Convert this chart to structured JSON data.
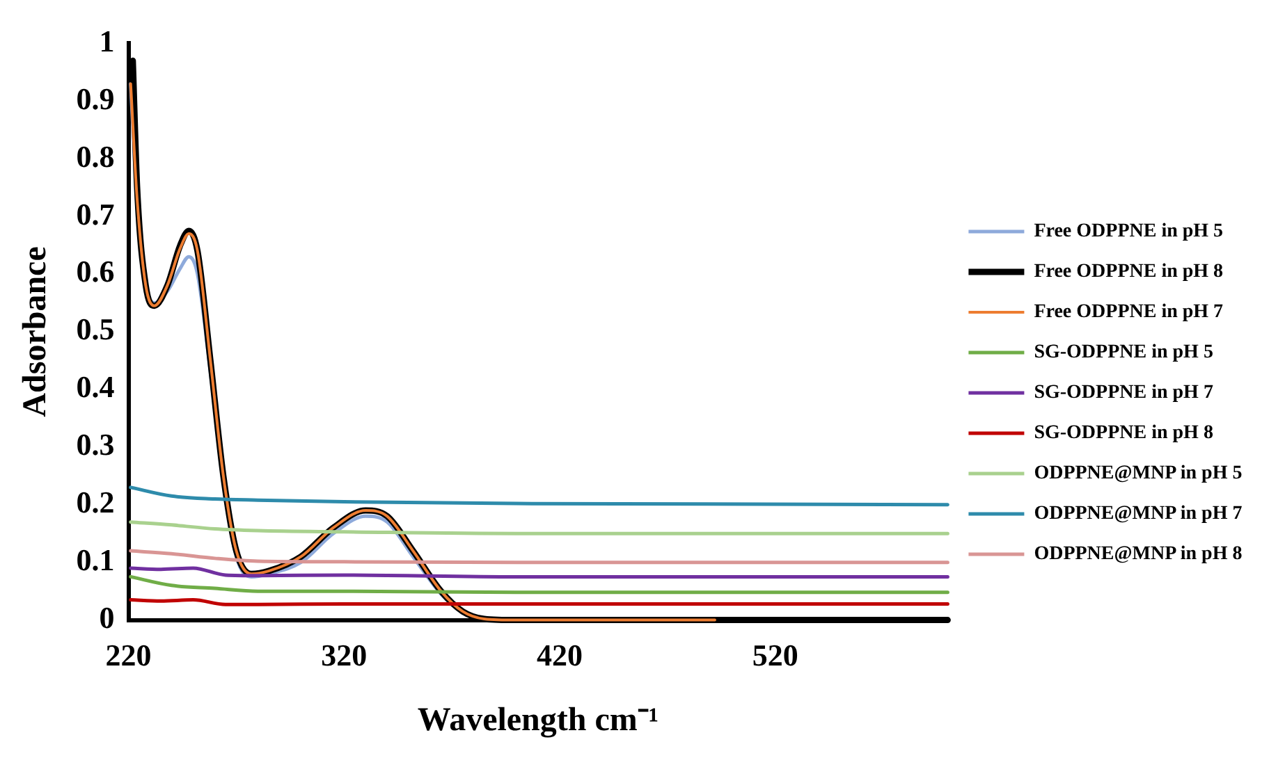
{
  "chart_data": {
    "type": "line",
    "xlabel": "Wavelength cm⁻¹",
    "ylabel": "Adsorbance",
    "xlim": [
      220,
      600
    ],
    "xticks": [
      220,
      320,
      420,
      520
    ],
    "ylim": [
      0,
      1
    ],
    "yticks": [
      0,
      0.1,
      0.2,
      0.3,
      0.4,
      0.5,
      0.6,
      0.7,
      0.8,
      0.9,
      1
    ],
    "grid": false,
    "legend": "right",
    "marker": "none",
    "line_style": "solid",
    "series": [
      {
        "name": "Free ODPPNE in pH 5",
        "color": "#8eaadb",
        "x": [
          221,
          224,
          228,
          232,
          238,
          244,
          248,
          252,
          258,
          264,
          270,
          277,
          285,
          300,
          315,
          330,
          340,
          352,
          365,
          375
        ],
        "values": [
          0.93,
          0.72,
          0.58,
          0.55,
          0.57,
          0.61,
          0.63,
          0.6,
          0.43,
          0.24,
          0.11,
          0.075,
          0.08,
          0.1,
          0.15,
          0.18,
          0.17,
          0.11,
          0.045,
          0.012
        ]
      },
      {
        "name": "Free ODPPNE in pH 8",
        "color": "#000000",
        "x": [
          222,
          224,
          228,
          232,
          238,
          244,
          248,
          252,
          258,
          264,
          270,
          277,
          285,
          300,
          315,
          330,
          340,
          352,
          365,
          375,
          385,
          400,
          600
        ],
        "values": [
          0.97,
          0.75,
          0.58,
          0.545,
          0.58,
          0.65,
          0.675,
          0.64,
          0.45,
          0.25,
          0.12,
          0.08,
          0.085,
          0.11,
          0.16,
          0.19,
          0.18,
          0.12,
          0.05,
          0.015,
          0.002,
          0,
          0
        ]
      },
      {
        "name": "Free ODPPNE in pH 7",
        "color": "#ed7d31",
        "x": [
          221,
          224,
          228,
          232,
          238,
          244,
          248,
          252,
          258,
          264,
          270,
          277,
          285,
          300,
          315,
          330,
          340,
          352,
          365,
          375,
          385,
          400,
          492
        ],
        "values": [
          0.93,
          0.73,
          0.58,
          0.545,
          0.58,
          0.645,
          0.67,
          0.64,
          0.45,
          0.25,
          0.12,
          0.08,
          0.085,
          0.11,
          0.16,
          0.19,
          0.18,
          0.12,
          0.05,
          0.015,
          0.002,
          0,
          0
        ]
      },
      {
        "name": "SG-ODPPNE in pH 5",
        "color": "#70ad47",
        "x": [
          221,
          240,
          260,
          280,
          320,
          400,
          600
        ],
        "values": [
          0.075,
          0.06,
          0.055,
          0.05,
          0.05,
          0.048,
          0.048
        ]
      },
      {
        "name": "SG-ODPPNE in pH 7",
        "color": "#7030a0",
        "x": [
          221,
          235,
          250,
          265,
          280,
          320,
          400,
          600
        ],
        "values": [
          0.09,
          0.088,
          0.09,
          0.078,
          0.077,
          0.078,
          0.075,
          0.075
        ]
      },
      {
        "name": "SG-ODPPNE in pH 8",
        "color": "#c00000",
        "x": [
          221,
          235,
          250,
          265,
          280,
          320,
          400,
          600
        ],
        "values": [
          0.035,
          0.033,
          0.035,
          0.027,
          0.027,
          0.028,
          0.028,
          0.028
        ]
      },
      {
        "name": "ODPPNE@MNP in pH 5",
        "color": "#a9d18e",
        "x": [
          221,
          240,
          260,
          280,
          320,
          400,
          600
        ],
        "values": [
          0.17,
          0.165,
          0.158,
          0.155,
          0.153,
          0.15,
          0.15
        ]
      },
      {
        "name": "ODPPNE@MNP in pH 7",
        "color": "#2e8bab",
        "x": [
          221,
          240,
          260,
          280,
          320,
          400,
          600
        ],
        "values": [
          0.23,
          0.215,
          0.21,
          0.208,
          0.205,
          0.202,
          0.2
        ]
      },
      {
        "name": "ODPPNE@MNP in pH 8",
        "color": "#d99594",
        "x": [
          221,
          240,
          260,
          280,
          320,
          400,
          600
        ],
        "values": [
          0.12,
          0.115,
          0.107,
          0.102,
          0.101,
          0.1,
          0.1
        ]
      }
    ]
  }
}
